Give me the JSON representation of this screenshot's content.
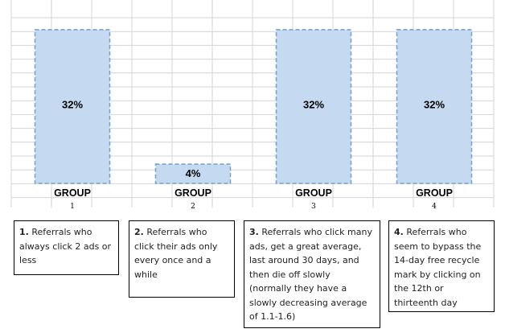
{
  "chart_data": {
    "type": "bar",
    "categories": [
      "GROUP 1",
      "GROUP 2",
      "GROUP 3",
      "GROUP 4"
    ],
    "group_word": "GROUP",
    "group_numbers": [
      "1",
      "2",
      "3",
      "4"
    ],
    "values": [
      32,
      4,
      32,
      32
    ],
    "value_labels": [
      "32%",
      "4%",
      "32%",
      "32%"
    ],
    "ylim": [
      0,
      36
    ],
    "grid": true,
    "title": "",
    "xlabel": "",
    "ylabel": "",
    "colors": {
      "bar_fill": "#c5d9f1",
      "bar_border": "#7aa2d4",
      "grid": "#d4d4d4",
      "label": "#000000"
    }
  },
  "descriptions": [
    {
      "num": "1.",
      "text": "Referrals who always click 2 ads or less"
    },
    {
      "num": "2.",
      "text": "Referrals who click their ads only every once and a while"
    },
    {
      "num": "3.",
      "text": "Referrals who click many ads, get a great average, last around 30 days, and then die off slowly (normally they have a slowly decreasing average of 1.1-1.6)"
    },
    {
      "num": "4.",
      "text": "Referrals who seem to bypass the 14-day free recycle mark by clicking on the 12th or thirteenth day"
    }
  ]
}
